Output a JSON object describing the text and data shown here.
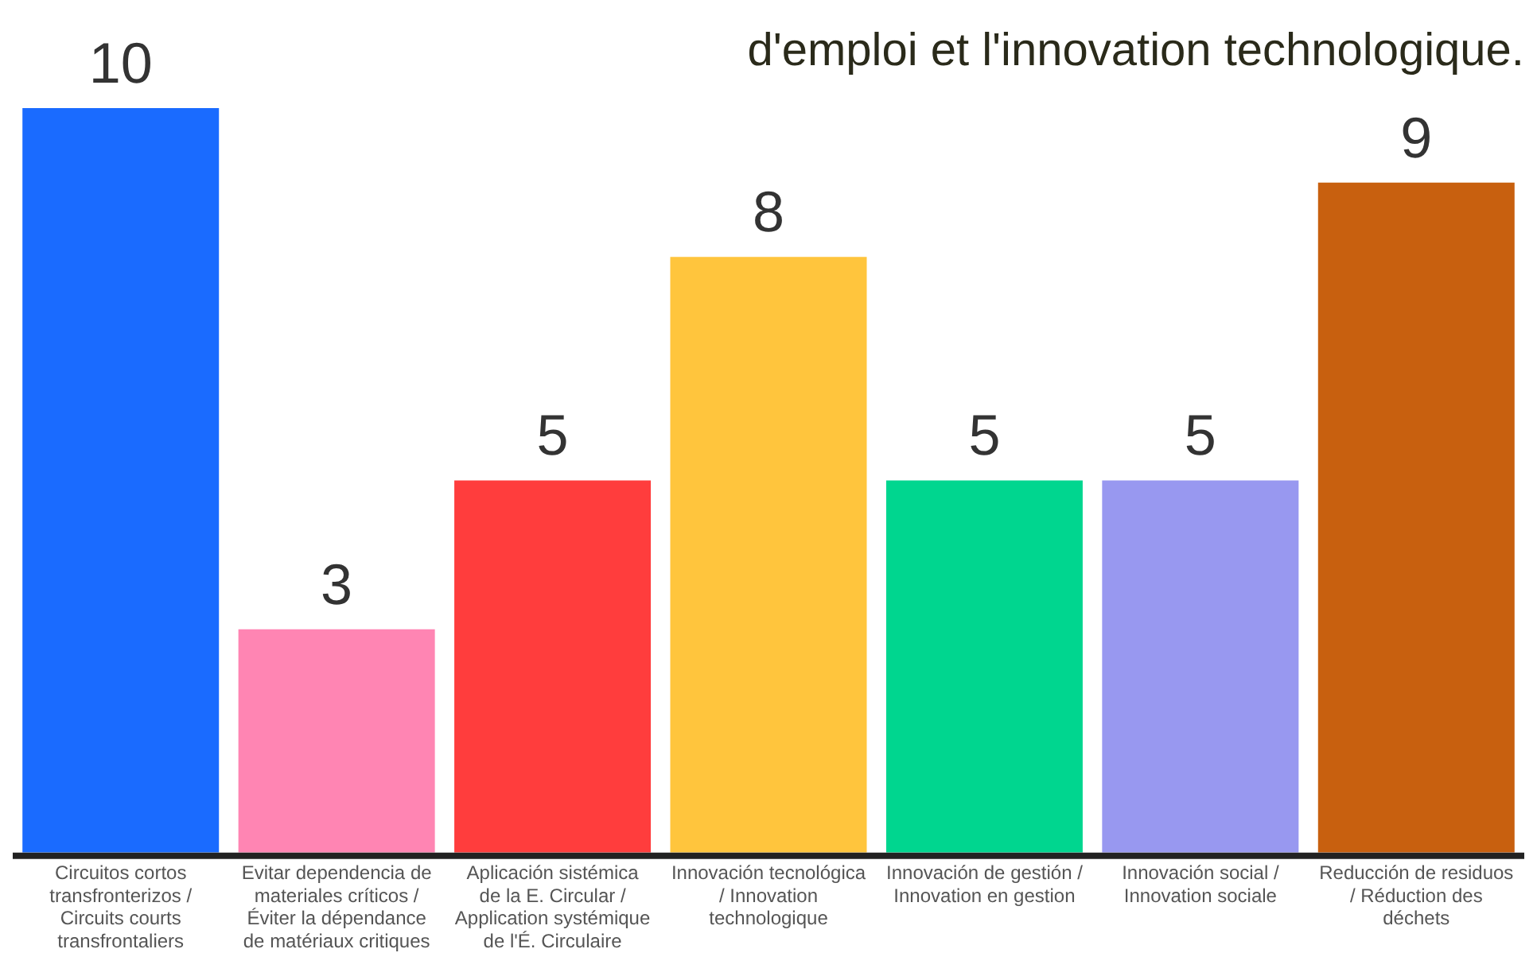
{
  "chart_data": {
    "type": "bar",
    "categories": [
      "Circuitos cortos transfronterizos / Circuits courts transfrontaliers",
      "Evitar dependencia de materiales críticos / Éviter la dépendance de matériaux critiques",
      "Aplicación sistémica de la E. Circular / Application systémique de l'É. Circulaire",
      "Innovación tecnológica / Innovation technologique",
      "Innovación de gestión / Innovation en gestion",
      "Innovación social / Innovation sociale",
      "Reducción de residuos / Réduction des déchets"
    ],
    "values": [
      10,
      3,
      5,
      8,
      5,
      5,
      9
    ],
    "colors": [
      "#1a6bff",
      "#ff85b3",
      "#ff3d3d",
      "#ffc53d",
      "#00d68f",
      "#9898f0",
      "#c8600f"
    ],
    "data_labels": true,
    "tick_labels": "x",
    "grid": false,
    "legend": false,
    "annotations": [
      "d'emploi et l'innovation technologique."
    ]
  }
}
